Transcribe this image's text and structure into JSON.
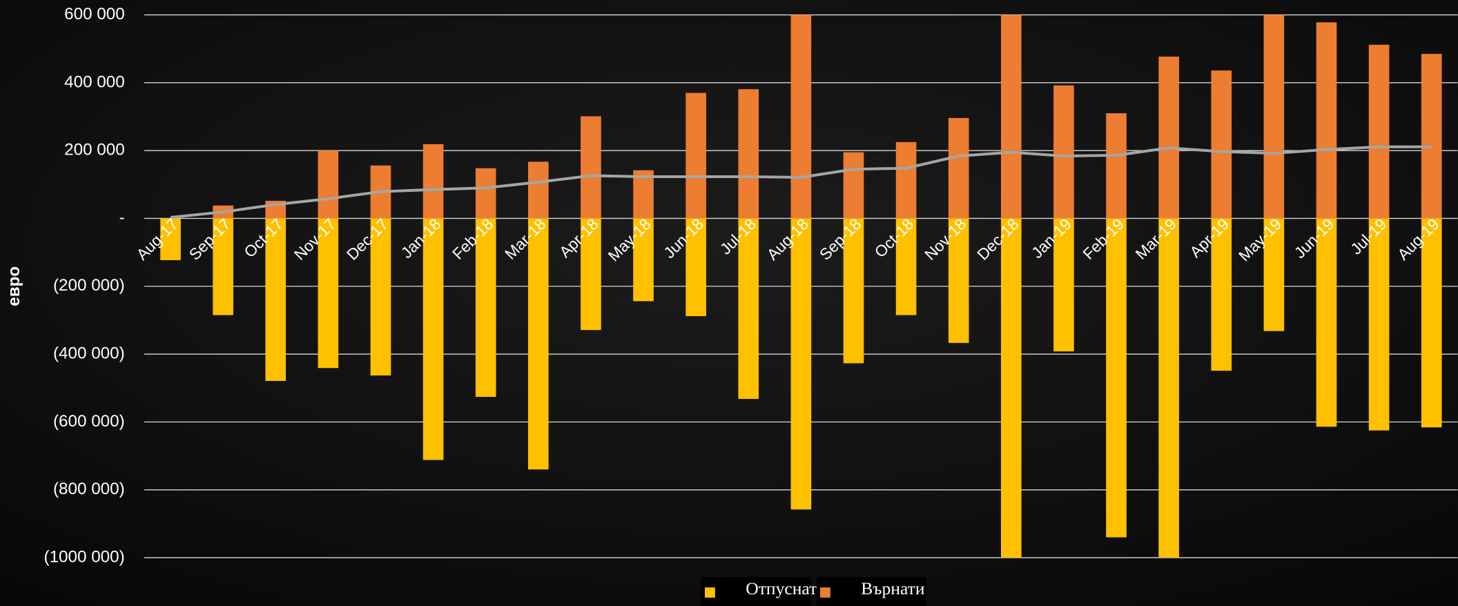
{
  "chart_data": {
    "type": "bar",
    "y_label": "евро",
    "categories": [
      "Aug-17",
      "Sep-17",
      "Oct-17",
      "Nov-17",
      "Dec-17",
      "Jan-18",
      "Feb-18",
      "Mar-18",
      "Apr-18",
      "May-18",
      "Jun-18",
      "Jul-18",
      "Aug-18",
      "Sep-18",
      "Oct-18",
      "Nov-18",
      "Dec-18",
      "Jan-19",
      "Feb-19",
      "Mar-19",
      "Apr-19",
      "May-19",
      "Jun-19",
      "Jul-19",
      "Aug-19"
    ],
    "series": [
      {
        "name": "Отпуснати",
        "color": "#ffc000",
        "values": [
          -123000,
          -285000,
          -479000,
          -441000,
          -463000,
          -712000,
          -526000,
          -740000,
          -329000,
          -244000,
          -288000,
          -532000,
          -858000,
          -427000,
          -285000,
          -367000,
          -1000000,
          -392000,
          -940000,
          -1000000,
          -449000,
          -332000,
          -614000,
          -625000,
          -616000
        ]
      },
      {
        "name": "Върнати",
        "color": "#ed7d31",
        "values": [
          0,
          38000,
          52000,
          200000,
          156000,
          219000,
          148000,
          167000,
          301000,
          142000,
          370000,
          381000,
          600000,
          195000,
          225000,
          296000,
          600000,
          392000,
          310000,
          477000,
          436000,
          600000,
          578000,
          512000,
          485000
        ]
      },
      {
        "type": "line",
        "color": "#a5a5a5",
        "values": [
          3000,
          19000,
          41000,
          58000,
          79000,
          85000,
          90000,
          107000,
          126000,
          123000,
          123000,
          123000,
          121000,
          145000,
          148000,
          184000,
          195000,
          184000,
          186000,
          208000,
          197000,
          192000,
          203000,
          211000,
          211000
        ]
      }
    ],
    "ylim": [
      -1000000,
      600000
    ],
    "yticks": [
      {
        "value": 600000,
        "label": "600 000"
      },
      {
        "value": 400000,
        "label": "400 000"
      },
      {
        "value": 200000,
        "label": "200 000"
      },
      {
        "value": 0,
        "label": "-"
      },
      {
        "value": -200000,
        "label": "(200 000)"
      },
      {
        "value": -400000,
        "label": "(400 000)"
      },
      {
        "value": -600000,
        "label": "(600 000)"
      },
      {
        "value": -800000,
        "label": "(800 000)"
      },
      {
        "value": -1000000,
        "label": "(1000 000)"
      }
    ],
    "grid": true,
    "legend": "bottom"
  }
}
